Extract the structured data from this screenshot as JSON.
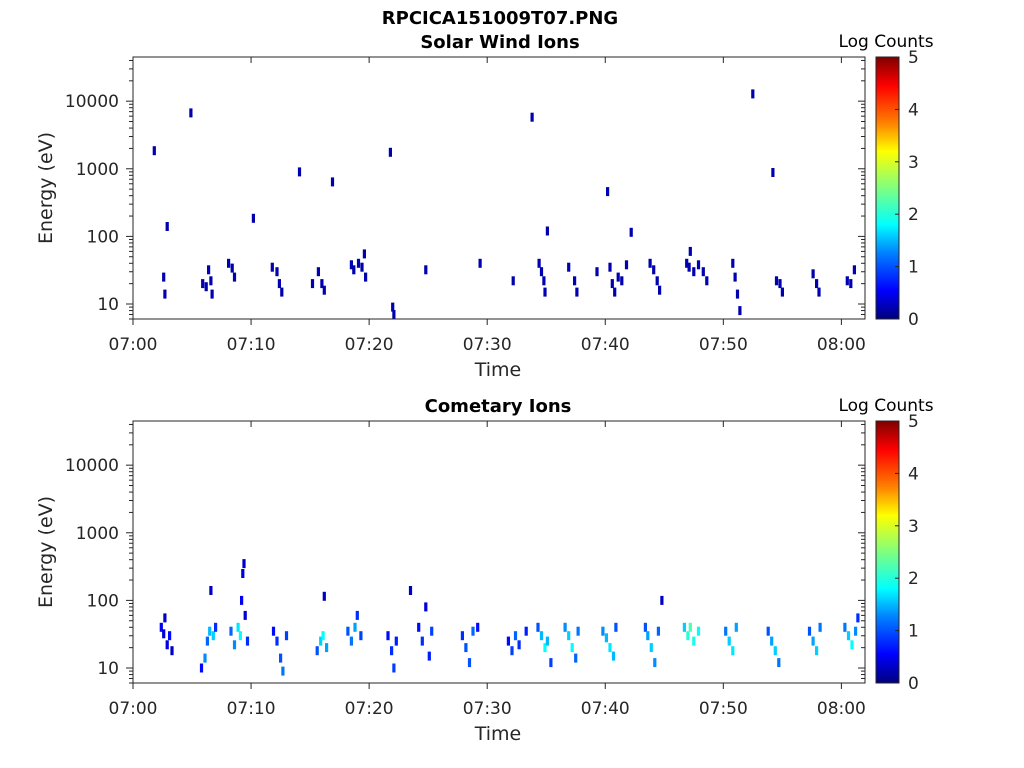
{
  "figure_title": "RPCICA151009T07.PNG",
  "colormap": [
    "#00007f",
    "#0000ff",
    "#007fff",
    "#00ffff",
    "#7fff7f",
    "#ffff00",
    "#ff7f00",
    "#ff0000",
    "#7f0000"
  ],
  "panels": [
    {
      "title": "Solar Wind Ions",
      "xlabel": "Time",
      "ylabel": "Energy (eV)",
      "colorbar": {
        "title": "Log Counts",
        "ticks": [
          "0",
          "1",
          "2",
          "3",
          "4",
          "5"
        ]
      },
      "xticks": [
        "07:00",
        "07:10",
        "07:20",
        "07:30",
        "07:40",
        "07:50",
        "08:00"
      ],
      "yticks": [
        "10",
        "100",
        "1000",
        "10000"
      ]
    },
    {
      "title": "Cometary Ions",
      "xlabel": "Time",
      "ylabel": "Energy (eV)",
      "colorbar": {
        "title": "Log Counts",
        "ticks": [
          "0",
          "1",
          "2",
          "3",
          "4",
          "5"
        ]
      },
      "xticks": [
        "07:00",
        "07:10",
        "07:20",
        "07:30",
        "07:40",
        "07:50",
        "08:00"
      ],
      "yticks": [
        "10",
        "100",
        "1000",
        "10000"
      ]
    }
  ],
  "chart_data": [
    {
      "type": "heatmap",
      "title": "Solar Wind Ions",
      "xlabel": "Time",
      "ylabel": "Energy (eV)",
      "x_unit": "minutes after 07:00",
      "y_scale": "log",
      "xlim": [
        0,
        62
      ],
      "ylim": [
        6,
        45000
      ],
      "clim": [
        0,
        5
      ],
      "colorbar_label": "Log Counts",
      "cells": [
        [
          1.8,
          1850,
          0.2
        ],
        [
          2.6,
          25,
          0.2
        ],
        [
          2.7,
          14,
          0.2
        ],
        [
          2.9,
          140,
          0.2
        ],
        [
          4.9,
          6700,
          0.2
        ],
        [
          5.9,
          20,
          0.2
        ],
        [
          6.2,
          18,
          0.2
        ],
        [
          6.4,
          32,
          0.2
        ],
        [
          6.6,
          22,
          0.2
        ],
        [
          6.7,
          14,
          0.2
        ],
        [
          8.1,
          40,
          0.2
        ],
        [
          8.4,
          34,
          0.2
        ],
        [
          8.6,
          25,
          0.2
        ],
        [
          10.2,
          185,
          0.2
        ],
        [
          11.8,
          35,
          0.2
        ],
        [
          12.2,
          30,
          0.2
        ],
        [
          12.4,
          20,
          0.2
        ],
        [
          12.6,
          15,
          0.2
        ],
        [
          14.1,
          900,
          0.2
        ],
        [
          15.2,
          20,
          0.2
        ],
        [
          15.7,
          30,
          0.2
        ],
        [
          16.0,
          20,
          0.2
        ],
        [
          16.2,
          16,
          0.2
        ],
        [
          16.9,
          640,
          0.2
        ],
        [
          18.5,
          38,
          0.2
        ],
        [
          18.7,
          32,
          0.2
        ],
        [
          19.1,
          40,
          0.2
        ],
        [
          19.4,
          35,
          0.2
        ],
        [
          19.6,
          55,
          0.2
        ],
        [
          19.7,
          25,
          0.2
        ],
        [
          21.8,
          1750,
          0.2
        ],
        [
          22.0,
          9,
          0.2
        ],
        [
          22.1,
          7,
          0.2
        ],
        [
          24.8,
          32,
          0.2
        ],
        [
          29.4,
          40,
          0.2
        ],
        [
          32.2,
          22,
          0.2
        ],
        [
          33.8,
          5800,
          0.2
        ],
        [
          34.4,
          40,
          0.2
        ],
        [
          34.6,
          30,
          0.2
        ],
        [
          34.8,
          22,
          0.2
        ],
        [
          34.9,
          15,
          0.2
        ],
        [
          35.1,
          120,
          0.2
        ],
        [
          36.9,
          35,
          0.2
        ],
        [
          37.4,
          22,
          0.2
        ],
        [
          37.6,
          15,
          0.2
        ],
        [
          39.3,
          30,
          0.2
        ],
        [
          40.2,
          460,
          0.2
        ],
        [
          40.4,
          35,
          0.2
        ],
        [
          40.6,
          20,
          0.2
        ],
        [
          40.8,
          15,
          0.2
        ],
        [
          41.1,
          25,
          0.2
        ],
        [
          41.4,
          22,
          0.2
        ],
        [
          41.8,
          38,
          0.2
        ],
        [
          42.2,
          115,
          0.2
        ],
        [
          43.8,
          40,
          0.2
        ],
        [
          44.1,
          32,
          0.2
        ],
        [
          44.4,
          22,
          0.2
        ],
        [
          44.6,
          16,
          0.2
        ],
        [
          46.9,
          40,
          0.2
        ],
        [
          47.1,
          35,
          0.2
        ],
        [
          47.2,
          60,
          0.2
        ],
        [
          47.5,
          30,
          0.2
        ],
        [
          47.9,
          38,
          0.2
        ],
        [
          48.3,
          30,
          0.2
        ],
        [
          48.6,
          22,
          0.2
        ],
        [
          50.8,
          40,
          0.2
        ],
        [
          51.0,
          25,
          0.2
        ],
        [
          51.2,
          14,
          0.2
        ],
        [
          51.4,
          8,
          0.2
        ],
        [
          52.5,
          12800,
          0.2
        ],
        [
          54.2,
          880,
          0.2
        ],
        [
          54.5,
          22,
          0.2
        ],
        [
          54.8,
          20,
          0.2
        ],
        [
          55.0,
          15,
          0.2
        ],
        [
          57.6,
          28,
          0.2
        ],
        [
          57.9,
          20,
          0.2
        ],
        [
          58.1,
          15,
          0.2
        ],
        [
          60.5,
          22,
          0.2
        ],
        [
          60.8,
          20,
          0.2
        ],
        [
          61.1,
          32,
          0.2
        ]
      ]
    },
    {
      "type": "heatmap",
      "title": "Cometary Ions",
      "xlabel": "Time",
      "ylabel": "Energy (eV)",
      "x_unit": "minutes after 07:00",
      "y_scale": "log",
      "xlim": [
        0,
        62
      ],
      "ylim": [
        6,
        45000
      ],
      "clim": [
        0,
        5
      ],
      "colorbar_label": "Log Counts",
      "cells": [
        [
          2.4,
          40,
          0.5
        ],
        [
          2.6,
          32,
          0.4
        ],
        [
          2.7,
          55,
          0.3
        ],
        [
          2.9,
          22,
          0.4
        ],
        [
          3.1,
          30,
          0.6
        ],
        [
          3.3,
          18,
          0.3
        ],
        [
          5.8,
          10,
          0.6
        ],
        [
          6.1,
          14,
          1.3
        ],
        [
          6.3,
          25,
          1.1
        ],
        [
          6.5,
          35,
          1.5
        ],
        [
          6.6,
          140,
          0.3
        ],
        [
          6.8,
          30,
          1.6
        ],
        [
          7.0,
          40,
          0.8
        ],
        [
          8.3,
          35,
          1.1
        ],
        [
          8.6,
          22,
          1.3
        ],
        [
          8.9,
          40,
          1.7
        ],
        [
          9.1,
          30,
          1.8
        ],
        [
          9.2,
          100,
          0.5
        ],
        [
          9.3,
          250,
          0.4
        ],
        [
          9.4,
          350,
          0.3
        ],
        [
          9.5,
          60,
          0.4
        ],
        [
          9.7,
          25,
          0.8
        ],
        [
          11.9,
          35,
          0.6
        ],
        [
          12.2,
          25,
          0.8
        ],
        [
          12.5,
          14,
          1.0
        ],
        [
          12.7,
          9,
          1.2
        ],
        [
          13.0,
          30,
          0.9
        ],
        [
          15.6,
          18,
          1.0
        ],
        [
          15.9,
          25,
          1.6
        ],
        [
          16.1,
          30,
          1.8
        ],
        [
          16.2,
          115,
          0.3
        ],
        [
          16.4,
          20,
          1.4
        ],
        [
          18.2,
          35,
          1.0
        ],
        [
          18.5,
          25,
          1.2
        ],
        [
          18.8,
          40,
          1.4
        ],
        [
          19.0,
          60,
          0.8
        ],
        [
          19.3,
          30,
          0.9
        ],
        [
          21.6,
          30,
          0.6
        ],
        [
          21.9,
          18,
          0.8
        ],
        [
          22.1,
          10,
          0.9
        ],
        [
          22.3,
          25,
          0.7
        ],
        [
          23.5,
          140,
          0.3
        ],
        [
          24.2,
          40,
          0.6
        ],
        [
          24.5,
          25,
          0.8
        ],
        [
          24.8,
          80,
          0.4
        ],
        [
          25.1,
          15,
          0.7
        ],
        [
          25.3,
          35,
          0.9
        ],
        [
          27.9,
          30,
          0.8
        ],
        [
          28.2,
          20,
          1.0
        ],
        [
          28.5,
          12,
          1.0
        ],
        [
          28.8,
          35,
          1.1
        ],
        [
          29.2,
          40,
          0.6
        ],
        [
          31.8,
          25,
          0.6
        ],
        [
          32.1,
          18,
          0.9
        ],
        [
          32.4,
          30,
          1.1
        ],
        [
          32.7,
          22,
          0.8
        ],
        [
          33.3,
          35,
          0.7
        ],
        [
          34.3,
          40,
          1.0
        ],
        [
          34.6,
          30,
          1.5
        ],
        [
          34.9,
          20,
          1.8
        ],
        [
          35.1,
          25,
          1.5
        ],
        [
          35.4,
          12,
          0.9
        ],
        [
          36.6,
          40,
          1.3
        ],
        [
          36.9,
          30,
          1.6
        ],
        [
          37.2,
          20,
          1.8
        ],
        [
          37.5,
          14,
          1.1
        ],
        [
          37.7,
          35,
          1.2
        ],
        [
          39.8,
          35,
          1.3
        ],
        [
          40.1,
          28,
          1.5
        ],
        [
          40.4,
          20,
          1.7
        ],
        [
          40.7,
          15,
          1.5
        ],
        [
          40.9,
          40,
          1.0
        ],
        [
          43.4,
          40,
          1.0
        ],
        [
          43.6,
          30,
          1.4
        ],
        [
          43.9,
          20,
          1.6
        ],
        [
          44.2,
          12,
          1.3
        ],
        [
          44.5,
          35,
          1.1
        ],
        [
          44.8,
          100,
          0.3
        ],
        [
          46.7,
          40,
          1.6
        ],
        [
          47.0,
          30,
          2.0
        ],
        [
          47.2,
          40,
          2.2
        ],
        [
          47.5,
          25,
          1.9
        ],
        [
          47.9,
          35,
          1.8
        ],
        [
          50.2,
          35,
          1.2
        ],
        [
          50.5,
          25,
          1.6
        ],
        [
          50.8,
          18,
          1.7
        ],
        [
          51.1,
          40,
          1.4
        ],
        [
          53.8,
          35,
          1.0
        ],
        [
          54.1,
          25,
          1.4
        ],
        [
          54.4,
          18,
          1.6
        ],
        [
          54.7,
          12,
          1.2
        ],
        [
          57.3,
          35,
          1.0
        ],
        [
          57.6,
          25,
          1.4
        ],
        [
          57.9,
          18,
          1.6
        ],
        [
          58.2,
          40,
          1.2
        ],
        [
          60.3,
          40,
          1.2
        ],
        [
          60.6,
          30,
          1.6
        ],
        [
          60.9,
          22,
          1.8
        ],
        [
          61.2,
          35,
          1.3
        ],
        [
          61.4,
          55,
          0.8
        ]
      ]
    }
  ]
}
